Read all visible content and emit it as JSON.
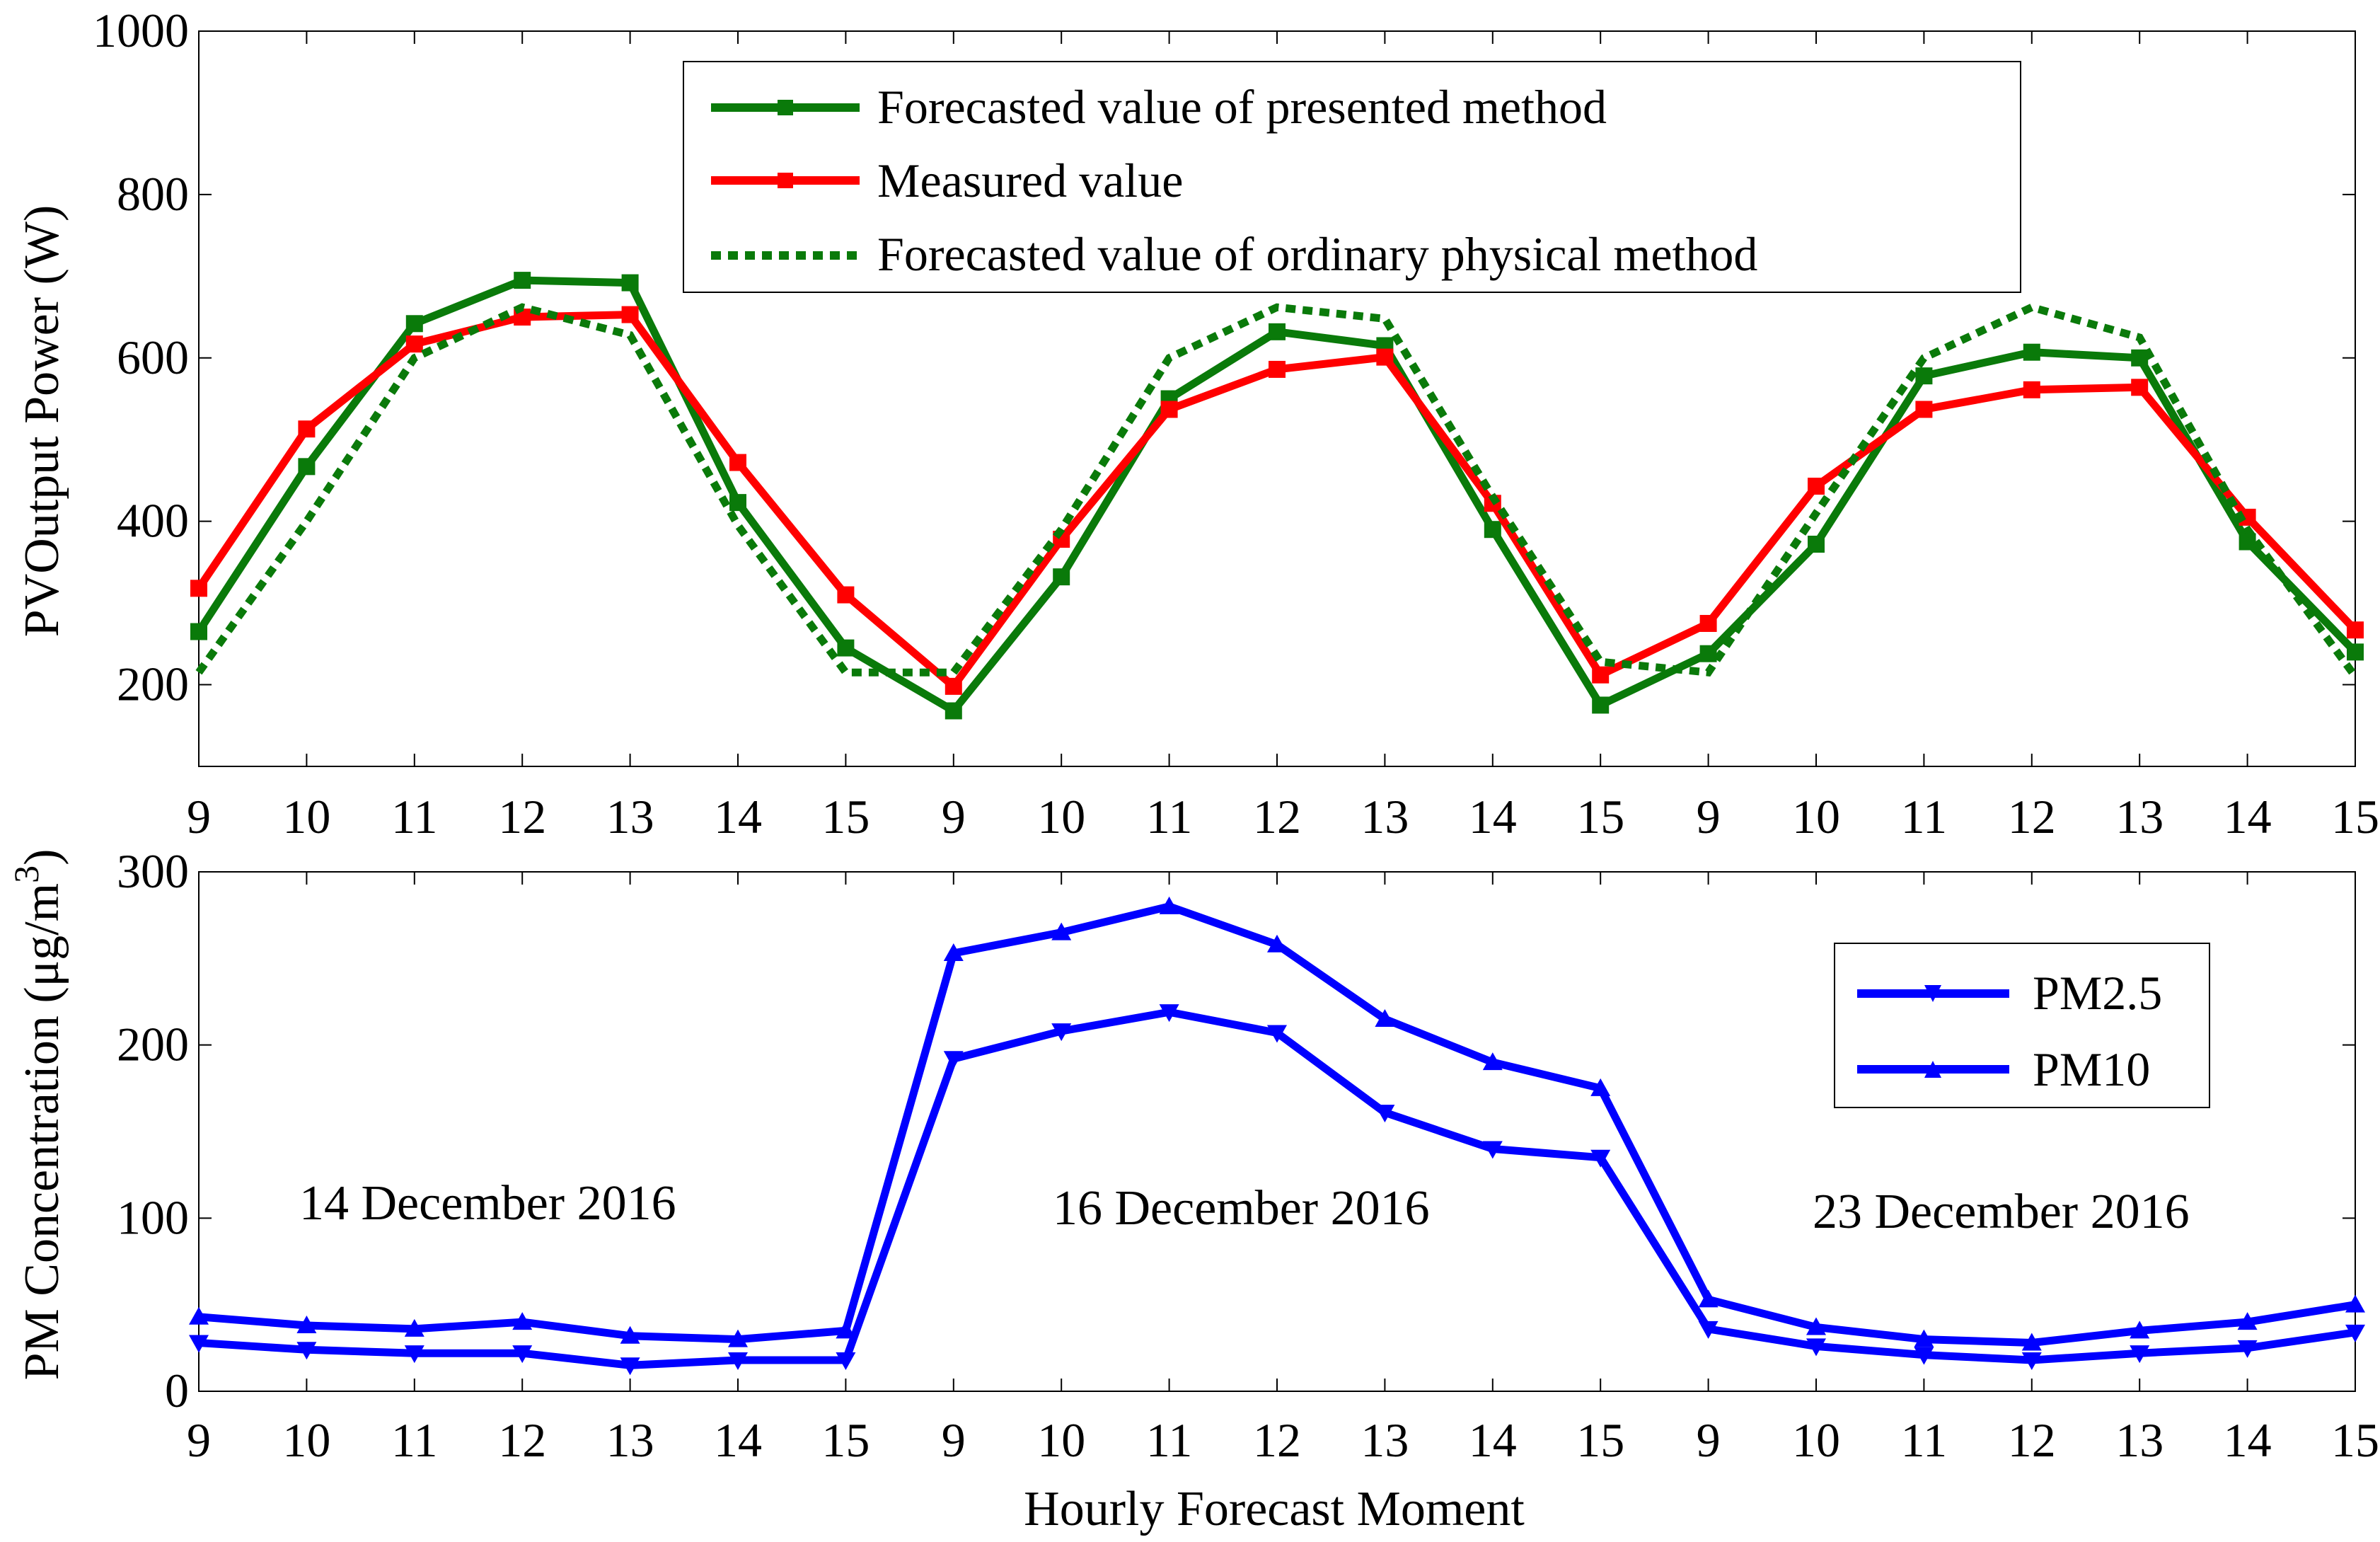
{
  "chart_data": [
    {
      "type": "line",
      "title": "",
      "xlabel": "",
      "ylabel": "PVOutput Power (W)",
      "ylim": [
        100,
        1000
      ],
      "yticks": [
        "200",
        "400",
        "600",
        "800",
        "1000"
      ],
      "ytick_values": [
        200,
        400,
        600,
        800,
        1000
      ],
      "categories": [
        "9",
        "10",
        "11",
        "12",
        "13",
        "14",
        "15",
        "9",
        "10",
        "11",
        "12",
        "13",
        "14",
        "15",
        "9",
        "10",
        "11",
        "12",
        "13",
        "14",
        "15"
      ],
      "legend_position": "top-center",
      "series": [
        {
          "name": "Forecasted value of presented method",
          "color": "#0a7a0a",
          "style": "solid",
          "marker": "square",
          "values": [
            265,
            467,
            642,
            695,
            692,
            423,
            245,
            168,
            332,
            550,
            632,
            615,
            390,
            175,
            238,
            372,
            578,
            607,
            600,
            375,
            240
          ]
        },
        {
          "name": "Measured value",
          "color": "#ff0000",
          "style": "solid",
          "marker": "square",
          "values": [
            318,
            513,
            617,
            650,
            653,
            472,
            310,
            198,
            378,
            537,
            586,
            601,
            422,
            212,
            275,
            443,
            537,
            561,
            564,
            405,
            267
          ]
        },
        {
          "name": "Forecasted value of ordinary physical method",
          "color": "#0a7a0a",
          "style": "dotted",
          "marker": "none",
          "values": [
            215,
            400,
            600,
            662,
            628,
            395,
            215,
            215,
            390,
            600,
            662,
            648,
            430,
            228,
            215,
            410,
            600,
            662,
            625,
            390,
            210
          ]
        }
      ]
    },
    {
      "type": "line",
      "title": "",
      "xlabel": "Hourly Forecast Moment",
      "ylabel": "PM Concentration (μg/m",
      "ylabel_superscript": "3",
      "ylabel_close": ")",
      "ylim": [
        0,
        300
      ],
      "yticks": [
        "0",
        "100",
        "200",
        "300"
      ],
      "ytick_values": [
        0,
        100,
        200,
        300
      ],
      "categories": [
        "9",
        "10",
        "11",
        "12",
        "13",
        "14",
        "15",
        "9",
        "10",
        "11",
        "12",
        "13",
        "14",
        "15",
        "9",
        "10",
        "11",
        "12",
        "13",
        "14",
        "15"
      ],
      "legend_position": "right",
      "series": [
        {
          "name": "PM2.5",
          "color": "#0000ff",
          "style": "solid",
          "marker": "triangle-down",
          "values": [
            28,
            24,
            22,
            22,
            15,
            18,
            18,
            192,
            208,
            219,
            207,
            161,
            140,
            135,
            36,
            26,
            21,
            18,
            22,
            25,
            34
          ]
        },
        {
          "name": "PM10",
          "color": "#0000ff",
          "style": "solid",
          "marker": "triangle-up",
          "values": [
            43,
            38,
            36,
            40,
            32,
            30,
            35,
            253,
            265,
            280,
            258,
            215,
            190,
            175,
            53,
            37,
            30,
            28,
            35,
            40,
            50
          ]
        }
      ],
      "annotations": [
        "14 December 2016",
        "16 December 2016",
        "23 December 2016"
      ]
    }
  ]
}
